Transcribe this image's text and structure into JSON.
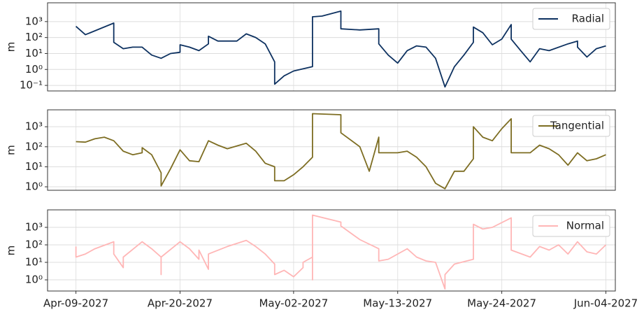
{
  "chart_data": [
    {
      "type": "line",
      "ylabel": "m",
      "yscale": "log",
      "grid": true,
      "legend": "upper right",
      "xlim": [
        "2027-04-06",
        "2027-06-05"
      ],
      "ylim": [
        0.045,
        15000
      ],
      "yticks": [
        {
          "value": 0.1,
          "label": "10⁻¹"
        },
        {
          "value": 1,
          "label": "10⁰"
        },
        {
          "value": 10,
          "label": "10¹"
        },
        {
          "value": 100,
          "label": "10²"
        },
        {
          "value": 1000,
          "label": "10³"
        }
      ],
      "x": [
        "2027-04-09",
        "2027-04-10",
        "2027-04-13",
        "2027-04-13",
        "2027-04-14",
        "2027-04-15",
        "2027-04-16",
        "2027-04-17",
        "2027-04-18",
        "2027-04-19",
        "2027-04-20",
        "2027-04-20",
        "2027-04-21",
        "2027-04-22",
        "2027-04-23",
        "2027-04-23",
        "2027-04-24",
        "2027-04-26",
        "2027-04-27",
        "2027-04-28",
        "2027-04-29",
        "2027-04-30",
        "2027-04-30",
        "2027-05-01",
        "2027-05-02",
        "2027-05-04",
        "2027-05-04",
        "2027-05-05",
        "2027-05-07",
        "2027-05-07",
        "2027-05-09",
        "2027-05-11",
        "2027-05-11",
        "2027-05-12",
        "2027-05-13",
        "2027-05-14",
        "2027-05-15",
        "2027-05-16",
        "2027-05-17",
        "2027-05-18",
        "2027-05-19",
        "2027-05-20",
        "2027-05-21",
        "2027-05-21",
        "2027-05-22",
        "2027-05-23",
        "2027-05-24",
        "2027-05-25",
        "2027-05-25",
        "2027-05-26",
        "2027-05-27",
        "2027-05-28",
        "2027-05-29",
        "2027-05-31",
        "2027-06-01",
        "2027-06-01",
        "2027-06-02",
        "2027-06-03",
        "2027-06-04"
      ],
      "series": [
        {
          "name": "Radial",
          "color": "#0d3160",
          "values": [
            500,
            150,
            800,
            50,
            20,
            25,
            25,
            8,
            5,
            10,
            12,
            35,
            25,
            15,
            40,
            120,
            60,
            60,
            170,
            100,
            40,
            3,
            0.12,
            0.4,
            0.8,
            1.5,
            2000,
            2200,
            4500,
            350,
            300,
            350,
            40,
            8,
            2.5,
            15,
            30,
            25,
            5,
            0.08,
            1.5,
            8,
            50,
            450,
            200,
            35,
            80,
            650,
            80,
            15,
            3,
            20,
            15,
            40,
            60,
            25,
            6,
            20,
            30
          ]
        }
      ]
    },
    {
      "type": "line",
      "ylabel": "m",
      "yscale": "log",
      "grid": true,
      "legend": "upper right",
      "xlim": [
        "2027-04-06",
        "2027-06-05"
      ],
      "ylim": [
        0.67,
        7000
      ],
      "yticks": [
        {
          "value": 1,
          "label": "10⁰"
        },
        {
          "value": 10,
          "label": "10¹"
        },
        {
          "value": 100,
          "label": "10²"
        },
        {
          "value": 1000,
          "label": "10³"
        }
      ],
      "x": [
        "2027-04-09",
        "2027-04-10",
        "2027-04-11",
        "2027-04-12",
        "2027-04-13",
        "2027-04-14",
        "2027-04-15",
        "2027-04-16",
        "2027-04-16",
        "2027-04-17",
        "2027-04-18",
        "2027-04-18",
        "2027-04-19",
        "2027-04-20",
        "2027-04-21",
        "2027-04-22",
        "2027-04-23",
        "2027-04-24",
        "2027-04-25",
        "2027-04-27",
        "2027-04-28",
        "2027-04-29",
        "2027-04-30",
        "2027-04-30",
        "2027-05-01",
        "2027-05-02",
        "2027-05-03",
        "2027-05-04",
        "2027-05-04",
        "2027-05-07",
        "2027-05-07",
        "2027-05-09",
        "2027-05-10",
        "2027-05-11",
        "2027-05-11",
        "2027-05-13",
        "2027-05-14",
        "2027-05-15",
        "2027-05-16",
        "2027-05-17",
        "2027-05-18",
        "2027-05-19",
        "2027-05-20",
        "2027-05-21",
        "2027-05-21",
        "2027-05-22",
        "2027-05-23",
        "2027-05-24",
        "2027-05-25",
        "2027-05-25",
        "2027-05-27",
        "2027-05-28",
        "2027-05-29",
        "2027-05-30",
        "2027-05-31",
        "2027-06-01",
        "2027-06-02",
        "2027-06-03",
        "2027-06-04"
      ],
      "series": [
        {
          "name": "Tangential",
          "color": "#7d6d22",
          "values": [
            180,
            170,
            250,
            300,
            200,
            60,
            40,
            50,
            90,
            40,
            5,
            1.1,
            8,
            70,
            20,
            18,
            200,
            120,
            80,
            150,
            60,
            15,
            10,
            2,
            2,
            4,
            10,
            30,
            4500,
            4000,
            500,
            100,
            6,
            300,
            50,
            50,
            60,
            30,
            10,
            1.5,
            0.8,
            6,
            6,
            25,
            1000,
            300,
            200,
            800,
            2500,
            50,
            50,
            120,
            80,
            40,
            12,
            50,
            20,
            25,
            40
          ]
        }
      ]
    },
    {
      "type": "line",
      "ylabel": "m",
      "yscale": "log",
      "grid": true,
      "legend": "upper right",
      "xlim": [
        "2027-04-06",
        "2027-06-05"
      ],
      "ylim": [
        0.23,
        10000
      ],
      "yticks": [
        {
          "value": 1,
          "label": "10⁰"
        },
        {
          "value": 10,
          "label": "10¹"
        },
        {
          "value": 100,
          "label": "10²"
        },
        {
          "value": 1000,
          "label": "10³"
        }
      ],
      "xticks": [
        {
          "value": "2027-04-09",
          "label": "Apr-09-2027"
        },
        {
          "value": "2027-04-20",
          "label": "Apr-20-2027"
        },
        {
          "value": "2027-05-02",
          "label": "May-02-2027"
        },
        {
          "value": "2027-05-13",
          "label": "May-13-2027"
        },
        {
          "value": "2027-05-24",
          "label": "May-24-2027"
        },
        {
          "value": "2027-06-04",
          "label": "Jun-04-2027"
        }
      ],
      "x": [
        "2027-04-09",
        "2027-04-09",
        "2027-04-10",
        "2027-04-11",
        "2027-04-13",
        "2027-04-13",
        "2027-04-14",
        "2027-04-14",
        "2027-04-16",
        "2027-04-17",
        "2027-04-18",
        "2027-04-18",
        "2027-04-18",
        "2027-04-20",
        "2027-04-21",
        "2027-04-22",
        "2027-04-22",
        "2027-04-23",
        "2027-04-23",
        "2027-04-25",
        "2027-04-27",
        "2027-04-28",
        "2027-04-29",
        "2027-04-30",
        "2027-04-30",
        "2027-05-01",
        "2027-05-02",
        "2027-05-03",
        "2027-05-03",
        "2027-05-04",
        "2027-05-04",
        "2027-05-04",
        "2027-05-07",
        "2027-05-07",
        "2027-05-09",
        "2027-05-11",
        "2027-05-11",
        "2027-05-12",
        "2027-05-14",
        "2027-05-15",
        "2027-05-16",
        "2027-05-17",
        "2027-05-18",
        "2027-05-18",
        "2027-05-19",
        "2027-05-21",
        "2027-05-21",
        "2027-05-22",
        "2027-05-23",
        "2027-05-25",
        "2027-05-25",
        "2027-05-27",
        "2027-05-28",
        "2027-05-29",
        "2027-05-30",
        "2027-05-31",
        "2027-06-01",
        "2027-06-02",
        "2027-06-03",
        "2027-06-04"
      ],
      "series": [
        {
          "name": "Normal",
          "color": "#ffb6b6",
          "values": [
            80,
            20,
            30,
            60,
            150,
            30,
            5,
            20,
            150,
            60,
            20,
            2,
            20,
            150,
            60,
            15,
            50,
            4,
            30,
            80,
            180,
            80,
            30,
            8,
            2,
            3.5,
            1.5,
            5,
            10,
            20,
            1,
            5000,
            2000,
            1200,
            200,
            60,
            12,
            15,
            60,
            20,
            12,
            10,
            0.3,
            2,
            8,
            15,
            1500,
            800,
            1000,
            3500,
            50,
            20,
            80,
            50,
            100,
            30,
            150,
            40,
            30,
            100
          ]
        }
      ]
    }
  ]
}
